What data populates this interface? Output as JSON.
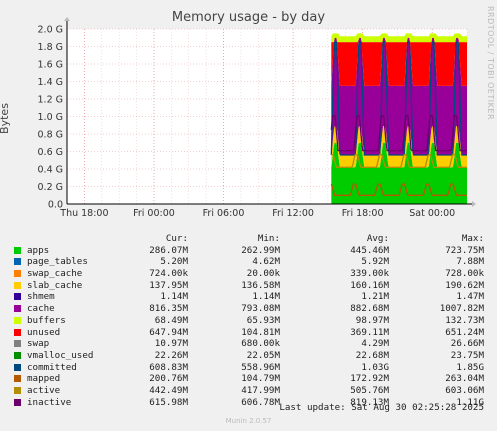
{
  "title": "Memory usage - by day",
  "ylabel": "Bytes",
  "brand": "RRDTOOL / TOBI OETIKER",
  "footer": "Munin 2.0.57",
  "last_update": "Last update: Sat Aug 30 02:25:28 2025",
  "headers": {
    "cur": "Cur:",
    "min": "Min:",
    "avg": "Avg:",
    "max": "Max:"
  },
  "legend": [
    {
      "name": "apps",
      "color": "#00cc00",
      "cur": "286.07M",
      "min": "262.99M",
      "avg": "445.46M",
      "max": "723.75M"
    },
    {
      "name": "page_tables",
      "color": "#0066b3",
      "cur": "5.20M",
      "min": "4.62M",
      "avg": "5.92M",
      "max": "7.88M"
    },
    {
      "name": "swap_cache",
      "color": "#ff8000",
      "cur": "724.00k",
      "min": "20.00k",
      "avg": "339.00k",
      "max": "728.00k"
    },
    {
      "name": "slab_cache",
      "color": "#ffcc00",
      "cur": "137.95M",
      "min": "136.58M",
      "avg": "160.16M",
      "max": "190.62M"
    },
    {
      "name": "shmem",
      "color": "#330099",
      "cur": "1.14M",
      "min": "1.14M",
      "avg": "1.21M",
      "max": "1.47M"
    },
    {
      "name": "cache",
      "color": "#990099",
      "cur": "816.35M",
      "min": "793.08M",
      "avg": "882.68M",
      "max": "1007.82M"
    },
    {
      "name": "buffers",
      "color": "#ccff00",
      "cur": "68.49M",
      "min": "65.93M",
      "avg": "98.97M",
      "max": "132.73M"
    },
    {
      "name": "unused",
      "color": "#ff0000",
      "cur": "647.94M",
      "min": "104.81M",
      "avg": "369.11M",
      "max": "651.24M"
    },
    {
      "name": "swap",
      "color": "#808080",
      "cur": "10.97M",
      "min": "680.00k",
      "avg": "4.29M",
      "max": "26.66M"
    },
    {
      "name": "vmalloc_used",
      "color": "#008f00",
      "cur": "22.26M",
      "min": "22.05M",
      "avg": "22.68M",
      "max": "23.75M"
    },
    {
      "name": "committed",
      "color": "#00487d",
      "cur": "608.83M",
      "min": "558.96M",
      "avg": "1.03G",
      "max": "1.85G"
    },
    {
      "name": "mapped",
      "color": "#b35a00",
      "cur": "200.76M",
      "min": "104.79M",
      "avg": "172.92M",
      "max": "263.04M"
    },
    {
      "name": "active",
      "color": "#b38f00",
      "cur": "442.49M",
      "min": "417.99M",
      "avg": "505.76M",
      "max": "603.06M"
    },
    {
      "name": "inactive",
      "color": "#6b006b",
      "cur": "615.98M",
      "min": "606.78M",
      "avg": "819.13M",
      "max": "1.11G"
    }
  ],
  "chart_data": {
    "type": "area",
    "title": "Memory usage - by day",
    "ylabel": "Bytes",
    "yticks": [
      "0.0",
      "0.2 G",
      "0.4 G",
      "0.6 G",
      "0.8 G",
      "1.0 G",
      "1.2 G",
      "1.4 G",
      "1.6 G",
      "1.8 G",
      "2.0 G"
    ],
    "ylim": [
      0,
      2.0
    ],
    "xticks": [
      "Thu 18:00",
      "Fri 00:00",
      "Fri 06:00",
      "Fri 12:00",
      "Fri 18:00",
      "Sat 00:00"
    ],
    "x_hours": [
      0,
      6,
      12,
      18,
      24,
      30
    ],
    "xlim_hours": [
      -1.5,
      33.0
    ],
    "data_start_hour": 21.3,
    "cycle_hours": 2.1,
    "stack_series": [
      "apps",
      "slab_cache",
      "cache",
      "unused",
      "buffers"
    ],
    "stack_baseline": [
      {
        "name": "apps",
        "values": [
          0.42,
          0.7
        ]
      },
      {
        "name": "slab_cache",
        "values": [
          0.14,
          0.19
        ]
      },
      {
        "name": "cache",
        "values": [
          0.79,
          1.01
        ]
      },
      {
        "name": "unused",
        "values": [
          0.1,
          0.65
        ]
      },
      {
        "name": "buffers",
        "values": [
          0.066,
          0.133
        ]
      }
    ],
    "total": 1.95,
    "lines": [
      {
        "name": "committed",
        "values_range": [
          0.56,
          1.85
        ]
      },
      {
        "name": "inactive",
        "values_range": [
          0.61,
          1.11
        ]
      },
      {
        "name": "active",
        "values_range": [
          0.42,
          0.6
        ]
      },
      {
        "name": "mapped",
        "values_range": [
          0.1,
          0.26
        ]
      }
    ],
    "grid": true
  }
}
